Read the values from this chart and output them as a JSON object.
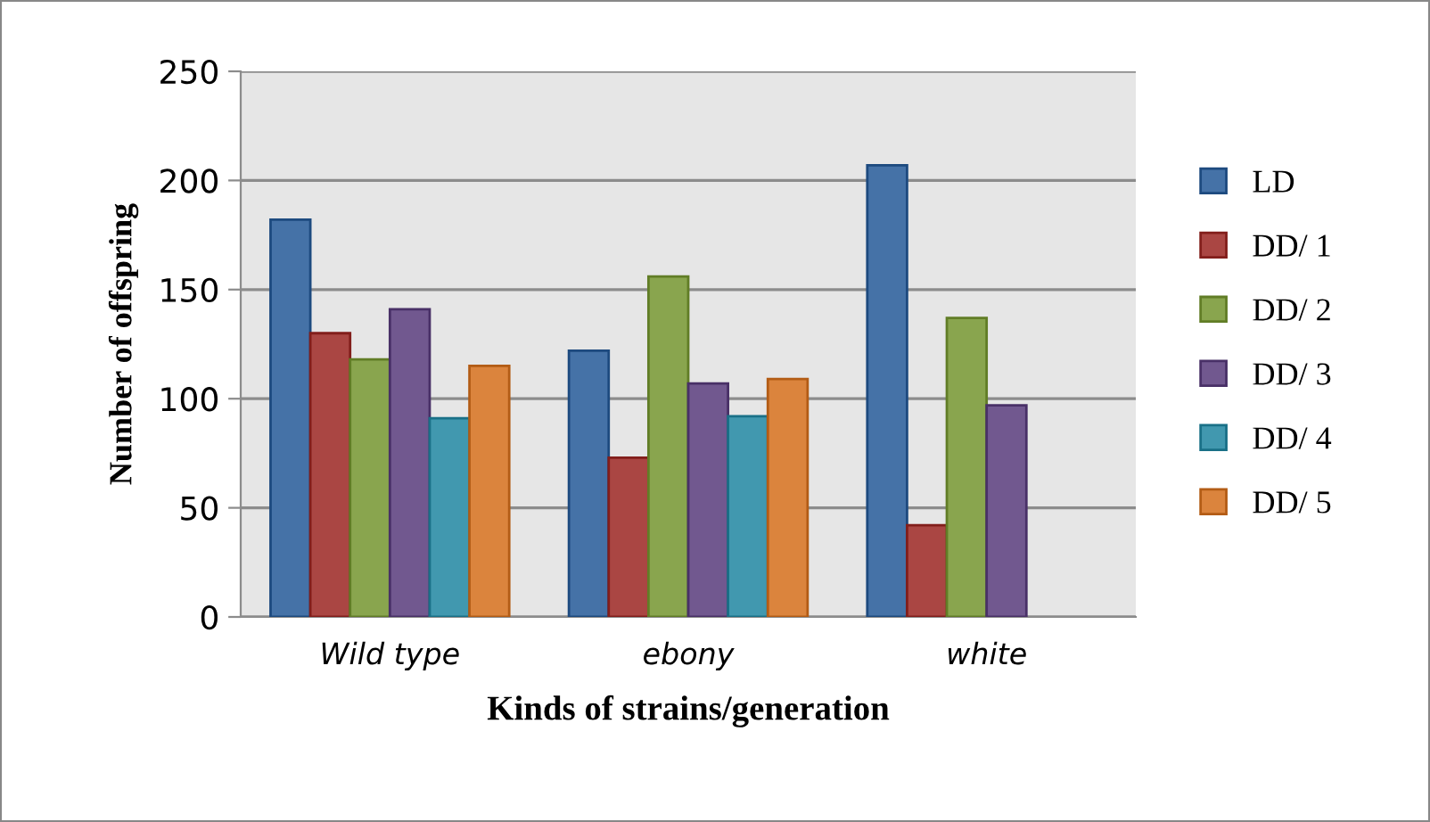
{
  "chart_data": {
    "type": "bar",
    "xlabel": "Kinds of strains/generation",
    "ylabel": "Number of offspring",
    "categories": [
      "Wild type",
      "ebony",
      "white"
    ],
    "series": [
      {
        "name": "LD",
        "color": "#4572a7",
        "values": [
          182,
          122,
          207
        ]
      },
      {
        "name": "DD/ 1",
        "color": "#aa4643",
        "values": [
          130,
          73,
          42
        ]
      },
      {
        "name": "DD/ 2",
        "color": "#89a54e",
        "values": [
          118,
          156,
          137
        ]
      },
      {
        "name": "DD/ 3",
        "color": "#71588f",
        "values": [
          141,
          107,
          97
        ]
      },
      {
        "name": "DD/ 4",
        "color": "#4198af",
        "values": [
          91,
          92,
          null
        ]
      },
      {
        "name": "DD/ 5",
        "color": "#db843d",
        "values": [
          115,
          109,
          null
        ]
      }
    ],
    "ylim": [
      0,
      250
    ],
    "yticks": [
      0,
      50,
      100,
      150,
      200,
      250
    ],
    "grid": "y",
    "legend": "right"
  }
}
